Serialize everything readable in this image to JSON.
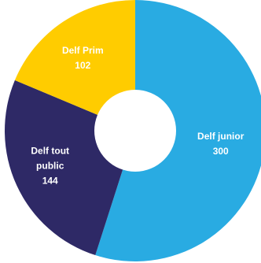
{
  "chart_data": {
    "type": "pie",
    "donut": true,
    "title": "",
    "categories": [
      "Delf junior",
      "Delf tout public",
      "Delf Prim"
    ],
    "values": [
      300,
      144,
      102
    ],
    "label_lines": [
      [
        "Delf junior",
        "300"
      ],
      [
        "Delf tout",
        "public",
        "144"
      ],
      [
        "Delf Prim",
        "102"
      ]
    ],
    "colors": [
      "#29ABE2",
      "#2E2966",
      "#FFCC00"
    ],
    "start": "top",
    "direction": "clockwise",
    "legend": "none"
  }
}
